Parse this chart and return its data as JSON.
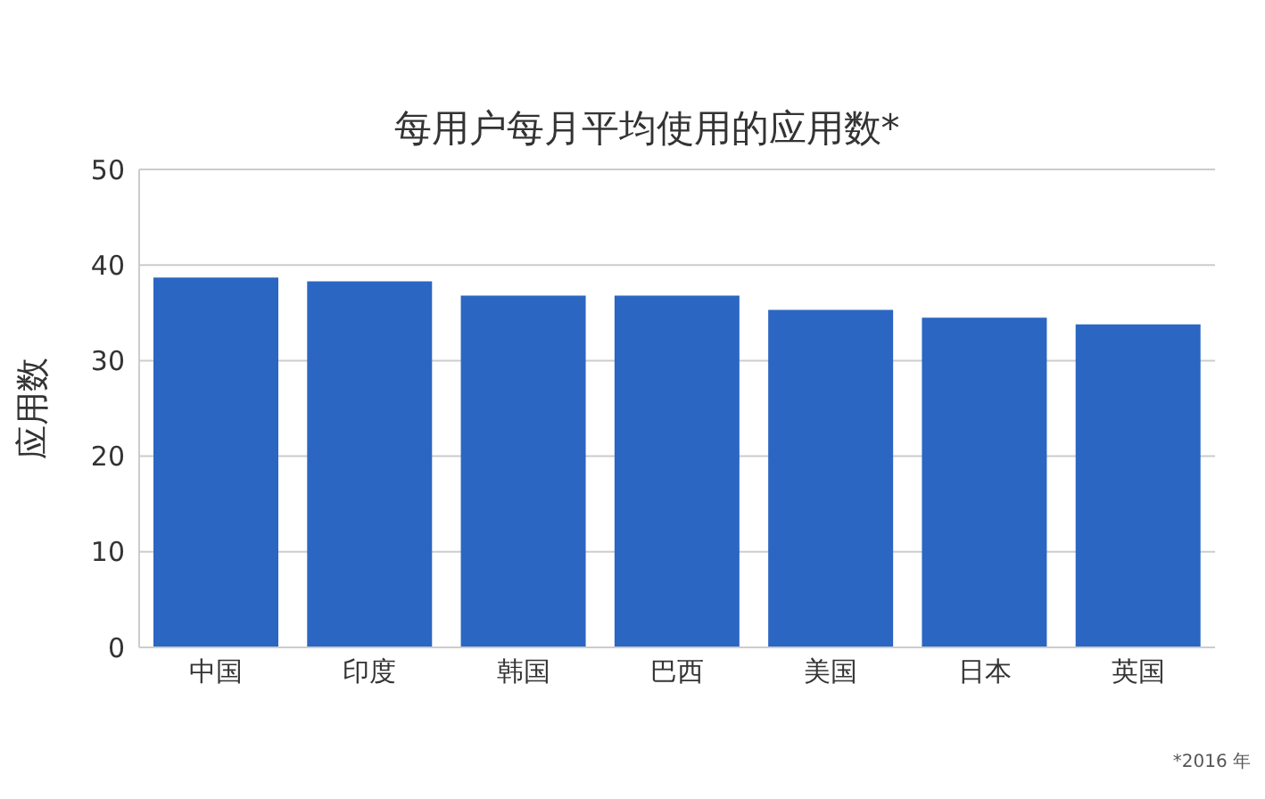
{
  "chart_data": {
    "type": "bar",
    "title": "每用户每月平均使用的应用数*",
    "ylabel": "应用数",
    "categories": [
      "中国",
      "印度",
      "韩国",
      "巴西",
      "美国",
      "日本",
      "英国"
    ],
    "values": [
      38.7,
      38.3,
      36.8,
      36.8,
      35.3,
      34.5,
      33.8
    ],
    "color": "#2b66c2",
    "ylim": [
      0,
      50
    ],
    "yticks": [
      0,
      10,
      20,
      30,
      40,
      50
    ],
    "grid": "y",
    "annotations": [
      "*2016 年"
    ]
  }
}
